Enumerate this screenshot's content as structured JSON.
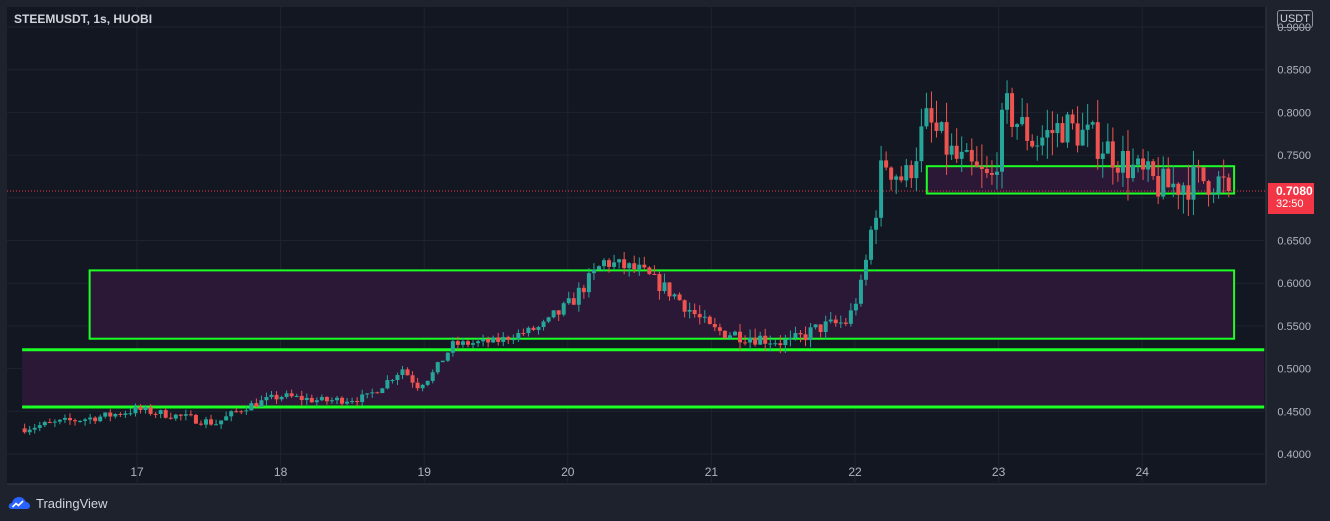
{
  "header": {
    "symbol": "STEEMUSDT, 1s, HUOBI",
    "currency_button": "USDT"
  },
  "footer": {
    "brand": "TradingView"
  },
  "price_badge": {
    "price": "0.7080",
    "countdown": "32:50"
  },
  "colors": {
    "background": "#1e222d",
    "up": "#26a69a",
    "down": "#ef5350",
    "box_border": "#1cff24",
    "box_fill": "#2b1836",
    "badge": "#f23645"
  },
  "chart_data": {
    "type": "candlestick",
    "title": "",
    "xlabel": "",
    "ylabel": "",
    "x_ticks": [
      "17",
      "18",
      "19",
      "20",
      "21",
      "22",
      "23",
      "24"
    ],
    "y_ticks": [
      "0.9000",
      "0.8500",
      "0.8000",
      "0.7500",
      "0.7000",
      "0.6500",
      "0.6000",
      "0.5500",
      "0.5000",
      "0.4500",
      "0.4000"
    ],
    "ylim": [
      0.4,
      0.9
    ],
    "last_price": 0.708,
    "grid": true,
    "x_range_days": [
      16.2,
      24.85
    ],
    "zones": [
      {
        "x_start": 16.67,
        "x_end": 24.64,
        "y_low": 0.535,
        "y_high": 0.615
      },
      {
        "x_start": 16.2,
        "x_end": 24.85,
        "y_low": 0.455,
        "y_high": 0.522
      },
      {
        "x_start": 22.5,
        "x_end": 24.64,
        "y_low": 0.705,
        "y_high": 0.737
      }
    ],
    "price_path": [
      [
        16.2,
        0.43
      ],
      [
        16.5,
        0.438
      ],
      [
        16.8,
        0.445
      ],
      [
        17.0,
        0.452
      ],
      [
        17.3,
        0.444
      ],
      [
        17.55,
        0.436
      ],
      [
        17.75,
        0.455
      ],
      [
        18.0,
        0.468
      ],
      [
        18.3,
        0.462
      ],
      [
        18.6,
        0.466
      ],
      [
        18.85,
        0.5
      ],
      [
        18.95,
        0.48
      ],
      [
        19.05,
        0.492
      ],
      [
        19.2,
        0.528
      ],
      [
        19.5,
        0.532
      ],
      [
        19.8,
        0.548
      ],
      [
        20.0,
        0.573
      ],
      [
        20.25,
        0.625
      ],
      [
        20.5,
        0.615
      ],
      [
        20.75,
        0.585
      ],
      [
        21.0,
        0.545
      ],
      [
        21.3,
        0.537
      ],
      [
        21.55,
        0.53
      ],
      [
        21.75,
        0.548
      ],
      [
        21.95,
        0.555
      ],
      [
        22.05,
        0.6
      ],
      [
        22.2,
        0.745
      ],
      [
        22.35,
        0.72
      ],
      [
        22.5,
        0.79
      ],
      [
        22.7,
        0.745
      ],
      [
        22.85,
        0.728
      ],
      [
        22.95,
        0.718
      ],
      [
        23.05,
        0.805
      ],
      [
        23.25,
        0.765
      ],
      [
        23.45,
        0.785
      ],
      [
        23.7,
        0.765
      ],
      [
        23.85,
        0.745
      ],
      [
        24.0,
        0.725
      ],
      [
        24.15,
        0.712
      ],
      [
        24.35,
        0.72
      ],
      [
        24.5,
        0.722
      ],
      [
        24.62,
        0.708
      ]
    ]
  }
}
